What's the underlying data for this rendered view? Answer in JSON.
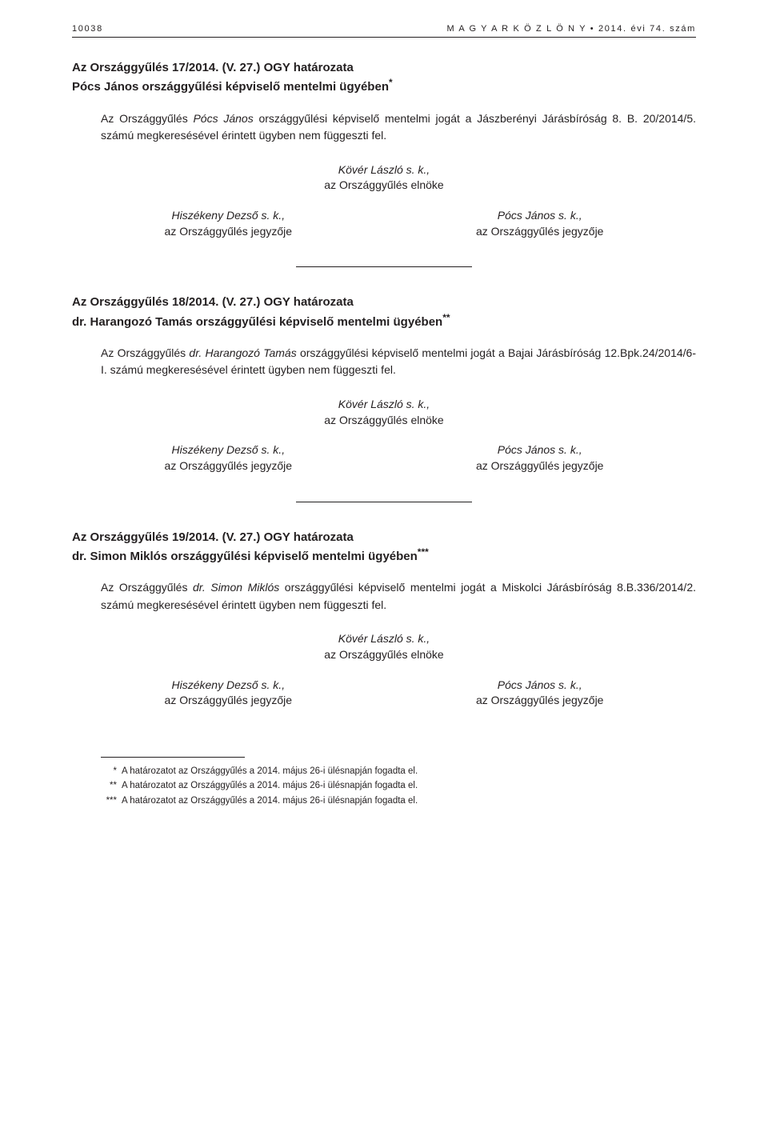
{
  "header": {
    "page_number": "10038",
    "gazette_spaced": "M A G Y A R   K Ö Z L Ö N Y",
    "bullet": "•",
    "issue": "2014. évi 74. szám"
  },
  "resolutions": [
    {
      "title": "Az Országgyűlés 17/2014. (V. 27.) OGY határozata",
      "subtitle_prefix": "Pócs János országgyűlési képviselő mentelmi ügyében",
      "subtitle_marker": "*",
      "body_plain_lead": "Az Országgyűlés ",
      "body_italic": "Pócs János",
      "body_plain_tail": " országgyűlési képviselő mentelmi jogát a Jászberényi Járásbíróság 8. B. 20/2014/5. számú megkeresésével érintett ügyben nem függeszti fel."
    },
    {
      "title": "Az Országgyűlés 18/2014. (V. 27.) OGY határozata",
      "subtitle_prefix": "dr. Harangozó Tamás országgyűlési képviselő mentelmi ügyében",
      "subtitle_marker": "**",
      "body_plain_lead": "Az Országgyűlés ",
      "body_italic": "dr. Harangozó Tamás",
      "body_plain_tail": " országgyűlési képviselő mentelmi jogát a Bajai Járásbíróság 12.Bpk.24/2014/6-I. számú megkeresésével érintett ügyben nem függeszti fel."
    },
    {
      "title": "Az Országgyűlés 19/2014. (V. 27.) OGY határozata",
      "subtitle_prefix": "dr. Simon Miklós országgyűlési képviselő mentelmi ügyében",
      "subtitle_marker": "***",
      "body_plain_lead": "Az Országgyűlés ",
      "body_italic": "dr. Simon Miklós",
      "body_plain_tail": " országgyűlési képviselő mentelmi jogát a Miskolci Járásbíróság 8.B.336/2014/2. számú megkeresésével érintett ügyben nem függeszti fel."
    }
  ],
  "signatures": {
    "center_name": "Kövér László s. k.,",
    "center_role": "az Országgyűlés elnöke",
    "left_name": "Hiszékeny Dezső s. k.,",
    "left_role": "az Országgyűlés jegyzője",
    "right_name": "Pócs János s. k.,",
    "right_role": "az Országgyűlés jegyzője"
  },
  "footnotes": [
    {
      "marker": "*",
      "text": "A határozatot az Országgyűlés a 2014. május 26-i ülésnapján fogadta el."
    },
    {
      "marker": "**",
      "text": "A határozatot az Országgyűlés a 2014. május 26-i ülésnapján fogadta el."
    },
    {
      "marker": "***",
      "text": "A határozatot az Országgyűlés a 2014. május 26-i ülésnapján fogadta el."
    }
  ]
}
